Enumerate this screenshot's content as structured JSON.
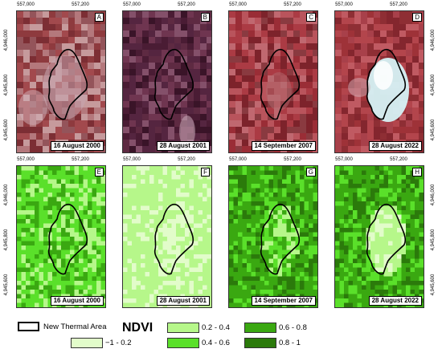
{
  "colors": {
    "ndvi_class_1": "#e2fcca",
    "ndvi_class_2": "#b6f78a",
    "ndvi_class_3": "#5ae02a",
    "ndvi_class_4": "#3aa811",
    "ndvi_class_5": "#2b7a0b",
    "thermal_outline": "#000000"
  },
  "x_ticks": [
    "557,000",
    "557,200"
  ],
  "y_ticks": [
    "4,946,000",
    "4,945,800",
    "4,945,600"
  ],
  "panels": [
    {
      "letter": "A",
      "date": "16 August 2000",
      "kind": "false-color",
      "tone": "mixed red"
    },
    {
      "letter": "B",
      "date": "28 August 2001",
      "kind": "false-color",
      "tone": "dark purple"
    },
    {
      "letter": "C",
      "date": "14 September 2007",
      "kind": "false-color",
      "tone": "red"
    },
    {
      "letter": "D",
      "date": "28 August 2022",
      "kind": "false-color",
      "tone": "red with bright cyan core"
    },
    {
      "letter": "E",
      "date": "16 August 2000",
      "kind": "ndvi",
      "dominant_class": "0.4 - 0.6"
    },
    {
      "letter": "F",
      "date": "28 August 2001",
      "kind": "ndvi",
      "dominant_class": "0.2 - 0.4"
    },
    {
      "letter": "G",
      "date": "14 September 2007",
      "kind": "ndvi",
      "dominant_class": "0.6 - 0.8"
    },
    {
      "letter": "H",
      "date": "28 August 2022",
      "kind": "ndvi",
      "dominant_class": "0.6 - 0.8"
    }
  ],
  "legend": {
    "outline_label": "New Thermal Area",
    "title": "NDVI",
    "classes": [
      {
        "label": "−1 - 0.2",
        "color_key": "ndvi_class_1"
      },
      {
        "label": "0.2 - 0.4",
        "color_key": "ndvi_class_2"
      },
      {
        "label": "0.4 - 0.6",
        "color_key": "ndvi_class_3"
      },
      {
        "label": "0.6 - 0.8",
        "color_key": "ndvi_class_4"
      },
      {
        "label": "0.8 - 1",
        "color_key": "ndvi_class_5"
      }
    ]
  }
}
